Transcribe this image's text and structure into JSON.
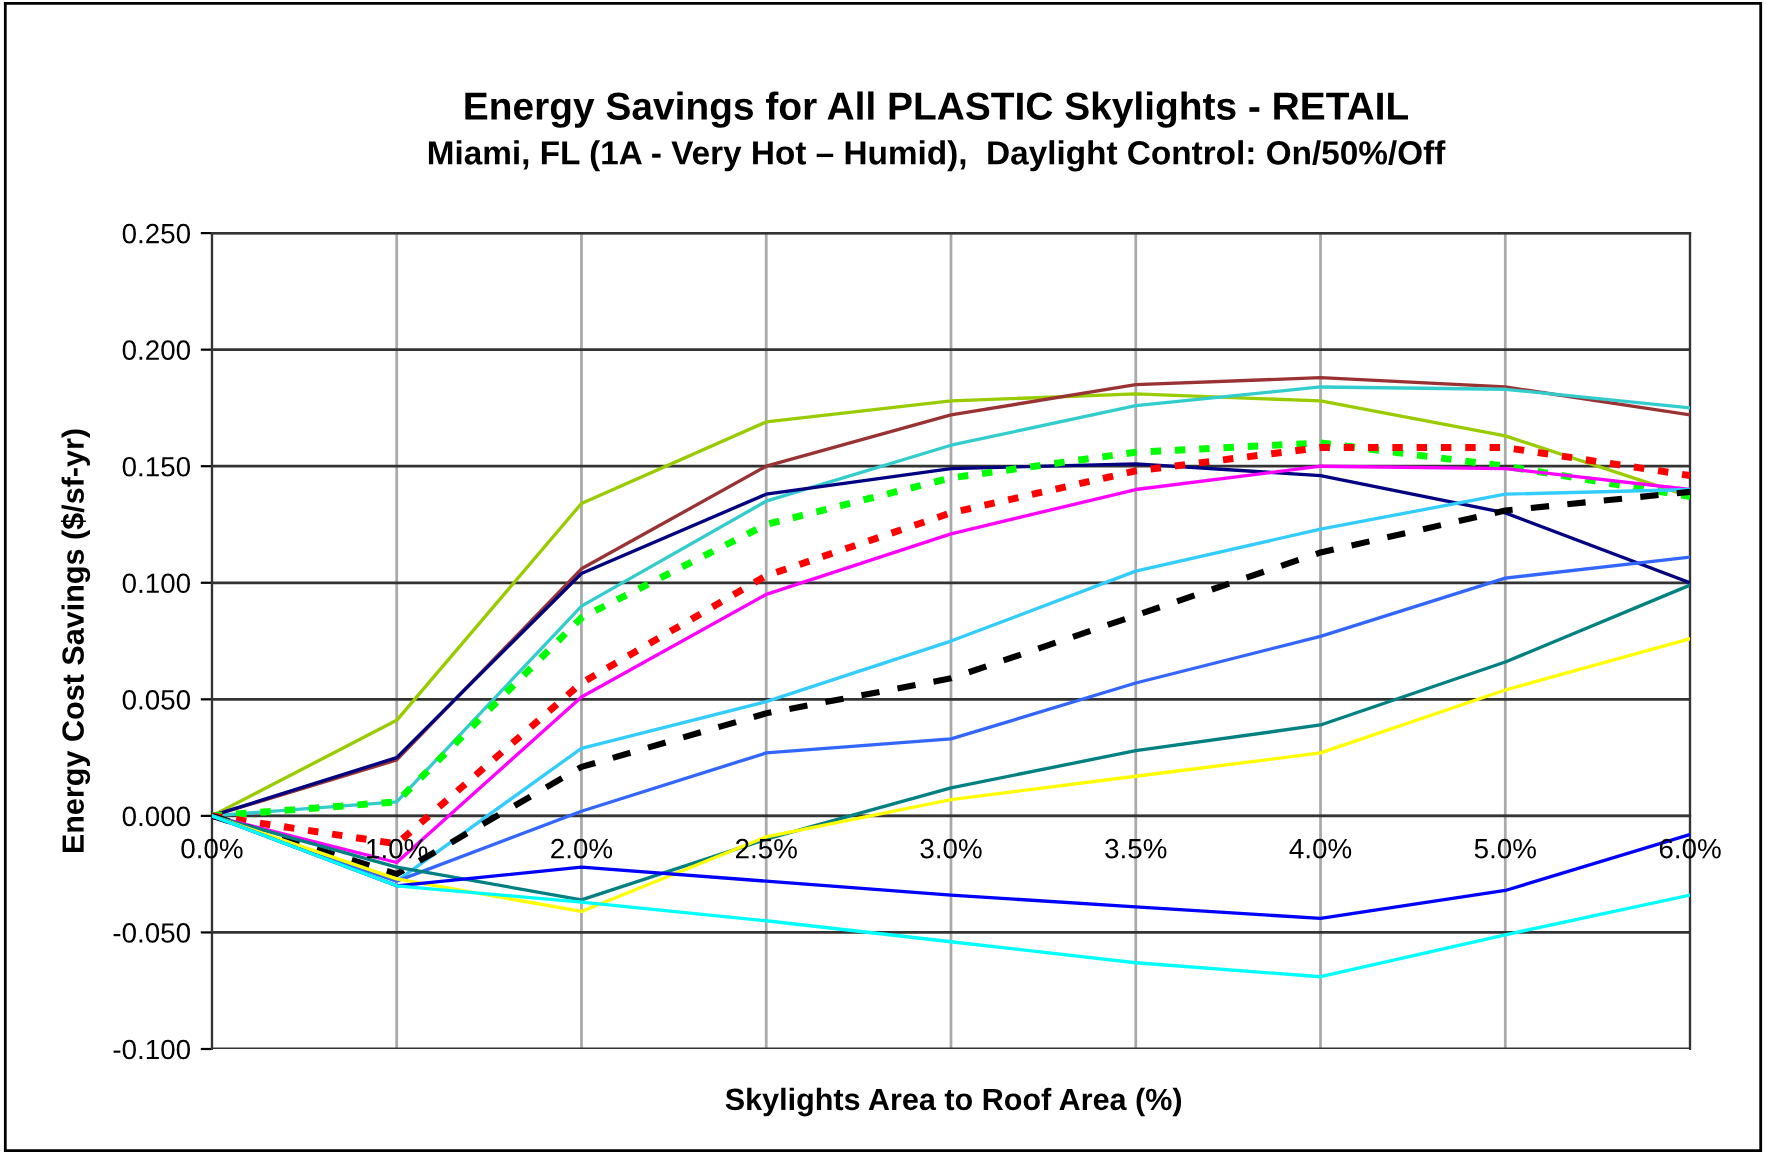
{
  "chart_data": {
    "type": "line",
    "title": "Energy Savings for All PLASTIC Skylights - RETAIL",
    "subtitle": "Miami, FL (1A - Very Hot – Humid),  Daylight Control: On/50%/Off",
    "xlabel": "Skylights Area to Roof Area (%)",
    "ylabel": "Energy Cost Savings ($/sf-yr)",
    "categories": [
      "0.0%",
      "1.0%",
      "2.0%",
      "2.5%",
      "3.0%",
      "3.5%",
      "4.0%",
      "5.0%",
      "6.0%"
    ],
    "ylim": [
      -0.1,
      0.25
    ],
    "yticks": [
      {
        "value": -0.1,
        "label": "-0.100"
      },
      {
        "value": -0.05,
        "label": "-0.050"
      },
      {
        "value": 0,
        "label": "0.000"
      },
      {
        "value": 0.05,
        "label": "0.050"
      },
      {
        "value": 0.1,
        "label": "0.100"
      },
      {
        "value": 0.15,
        "label": "0.150"
      },
      {
        "value": 0.2,
        "label": "0.200"
      },
      {
        "value": 0.25,
        "label": "0.250"
      }
    ],
    "grid": true,
    "legend": false,
    "series": [
      {
        "color": "#99cc00",
        "values": [
          0,
          0.041,
          0.134,
          0.169,
          0.178,
          0.181,
          0.178,
          0.163,
          0.137
        ]
      },
      {
        "color": "#993333",
        "values": [
          0,
          0.024,
          0.106,
          0.15,
          0.172,
          0.185,
          0.188,
          0.184,
          0.172
        ]
      },
      {
        "color": "#33cccc",
        "values": [
          0,
          0.006,
          0.09,
          0.135,
          0.159,
          0.176,
          0.184,
          0.183,
          0.175
        ]
      },
      {
        "color": "#000080",
        "values": [
          0,
          0.025,
          0.104,
          0.138,
          0.149,
          0.151,
          0.146,
          0.13,
          0.1
        ]
      },
      {
        "color": "#00ff00",
        "line_style": "dotted",
        "values": [
          0,
          0.006,
          0.085,
          0.125,
          0.145,
          0.156,
          0.16,
          0.15,
          0.137
        ]
      },
      {
        "color": "#ff0000",
        "line_style": "dotted",
        "values": [
          0,
          -0.012,
          0.057,
          0.103,
          0.13,
          0.148,
          0.158,
          0.158,
          0.146
        ]
      },
      {
        "color": "#ff00ff",
        "values": [
          0,
          -0.02,
          0.051,
          0.095,
          0.121,
          0.14,
          0.15,
          0.149,
          0.14
        ]
      },
      {
        "color": "#33ccff",
        "values": [
          0,
          -0.028,
          0.029,
          0.049,
          0.075,
          0.105,
          0.123,
          0.138,
          0.14
        ]
      },
      {
        "color": "#000000",
        "line_style": "dashed",
        "values": [
          0,
          -0.025,
          0.021,
          0.044,
          0.059,
          0.086,
          0.113,
          0.131,
          0.139
        ]
      },
      {
        "color": "#3366ff",
        "values": [
          0,
          -0.028,
          0.002,
          0.027,
          0.033,
          0.057,
          0.077,
          0.102,
          0.111
        ]
      },
      {
        "color": "#008080",
        "values": [
          0,
          -0.022,
          -0.036,
          -0.01,
          0.012,
          0.028,
          0.039,
          0.066,
          0.099
        ]
      },
      {
        "color": "#ffff00",
        "values": [
          0,
          -0.027,
          -0.041,
          -0.009,
          0.007,
          0.017,
          0.027,
          0.054,
          0.076
        ]
      },
      {
        "color": "#0000ff",
        "values": [
          0,
          -0.03,
          -0.022,
          -0.028,
          -0.034,
          -0.039,
          -0.044,
          -0.032,
          -0.008
        ]
      },
      {
        "color": "#00ffff",
        "values": [
          0,
          -0.03,
          -0.037,
          -0.045,
          -0.054,
          -0.063,
          -0.069,
          -0.051,
          -0.034
        ]
      }
    ]
  }
}
